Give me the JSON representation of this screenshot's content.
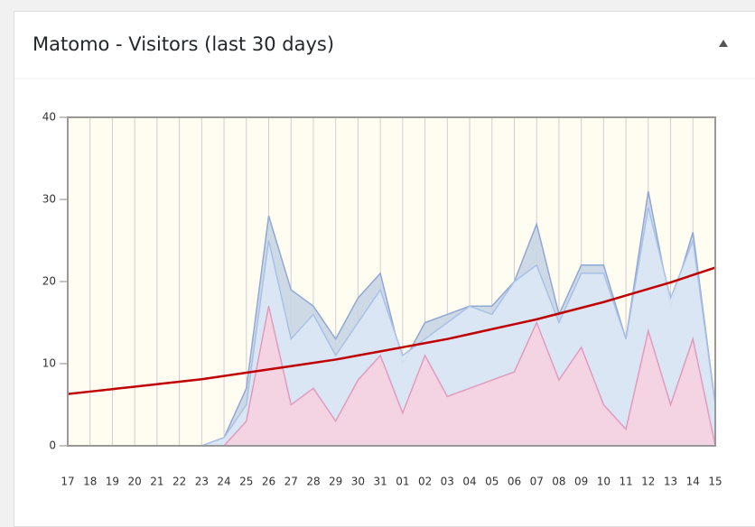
{
  "title": "Matomo - Visitors (last 30 days)",
  "chart_data": {
    "type": "area",
    "categories": [
      "17",
      "18",
      "19",
      "20",
      "21",
      "22",
      "23",
      "24",
      "25",
      "26",
      "27",
      "28",
      "29",
      "30",
      "31",
      "01",
      "02",
      "03",
      "04",
      "05",
      "06",
      "07",
      "08",
      "09",
      "10",
      "11",
      "12",
      "13",
      "14",
      "15"
    ],
    "series": [
      {
        "color": "#8fa8d4",
        "fill": "#c9d5e4",
        "values": [
          0,
          0,
          0,
          0,
          0,
          0,
          0,
          1,
          7,
          28,
          19,
          17,
          13,
          18,
          21,
          10,
          15,
          16,
          17,
          17,
          20,
          27,
          16,
          22,
          22,
          13,
          31,
          17,
          26,
          5
        ]
      },
      {
        "color": "#a9c0e8",
        "fill": "#dbe7f4",
        "values": [
          0,
          0,
          0,
          0,
          0,
          0,
          0,
          1,
          5,
          25,
          13,
          16,
          11,
          15,
          19,
          11,
          13,
          15,
          17,
          16,
          20,
          22,
          15,
          21,
          21,
          13,
          29,
          18,
          25,
          5
        ]
      },
      {
        "color": "#e29bbd",
        "fill": "#f6d0e1",
        "values": [
          0,
          0,
          0,
          0,
          0,
          0,
          0,
          0,
          3,
          17,
          5,
          7,
          3,
          8,
          11,
          4,
          11,
          6,
          7,
          8,
          9,
          15,
          8,
          12,
          5,
          2,
          14,
          5,
          13,
          0
        ]
      },
      {
        "type": "line",
        "color": "#c00000",
        "values": [
          6.3,
          6.6,
          6.9,
          7.2,
          7.5,
          7.8,
          8.1,
          8.5,
          8.9,
          9.3,
          9.7,
          10.1,
          10.5,
          11.0,
          11.5,
          12.0,
          12.5,
          13.0,
          13.6,
          14.2,
          14.8,
          15.4,
          16.1,
          16.8,
          17.5,
          18.3,
          19.1,
          19.9,
          20.8,
          21.7
        ]
      }
    ],
    "ylim": [
      0,
      40
    ],
    "yticks": [
      0,
      10,
      20,
      30,
      40
    ],
    "grid": true
  }
}
